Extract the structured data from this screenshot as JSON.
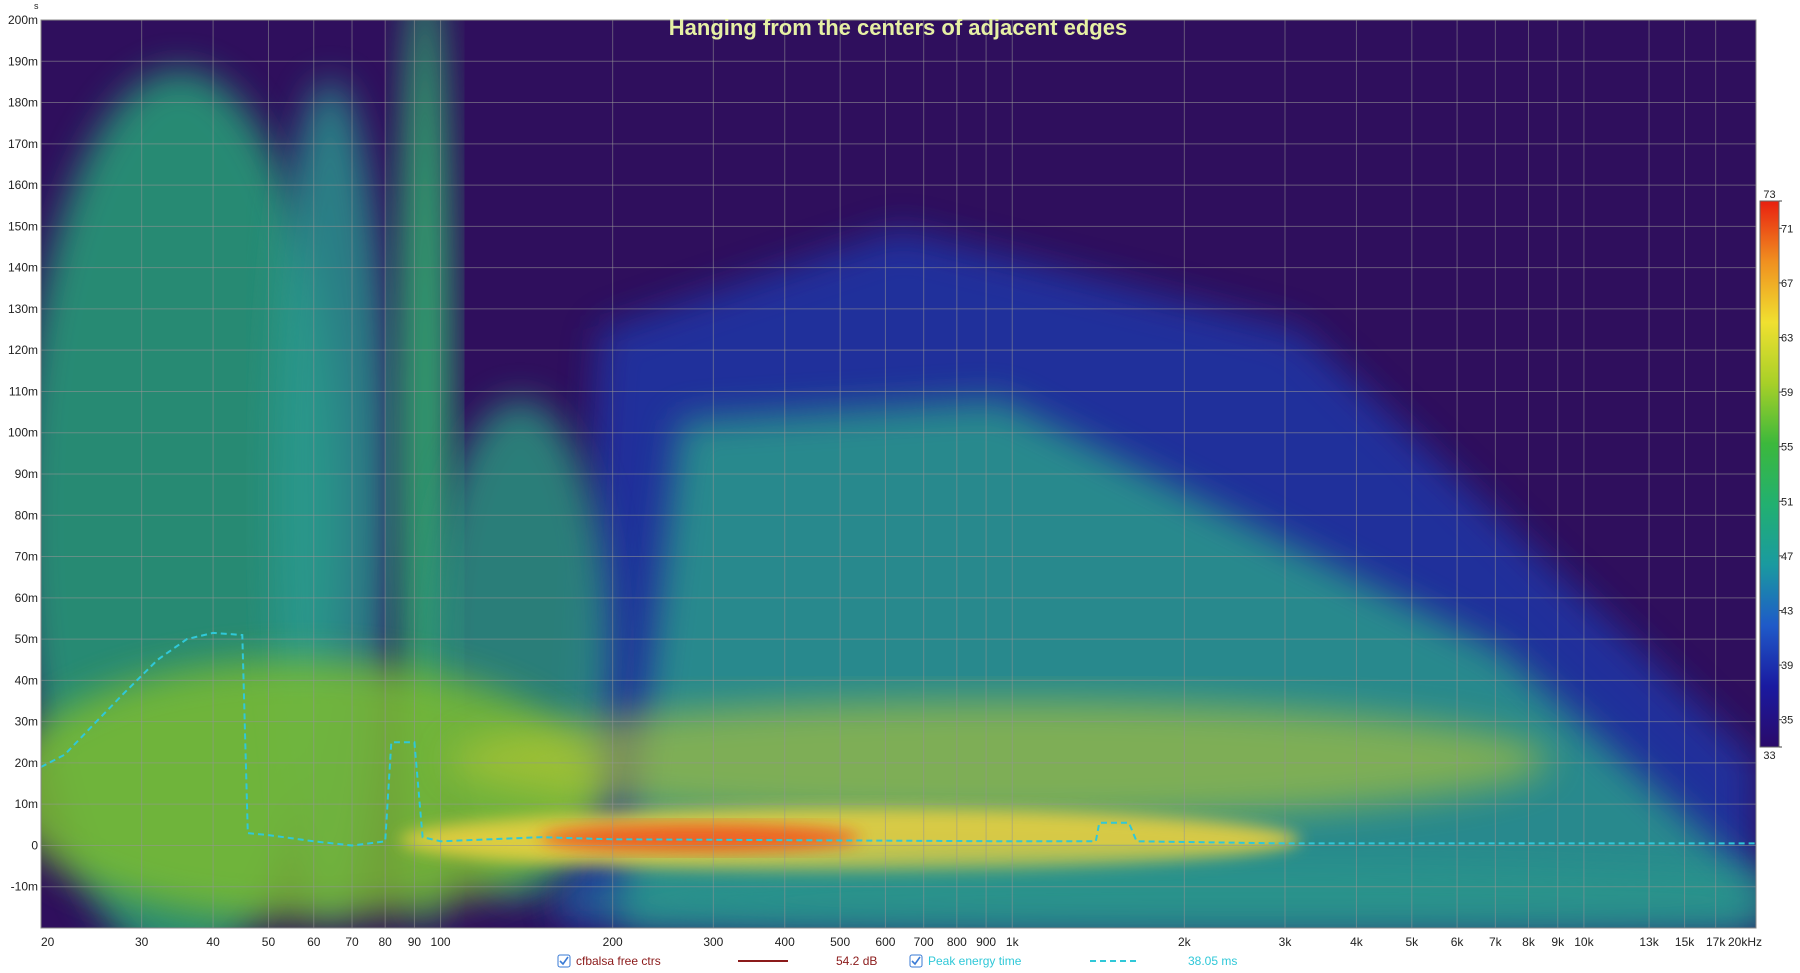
{
  "chart_data": {
    "type": "spectrogram",
    "title": "Hanging from the centers of adjacent edges",
    "y_unit": "s",
    "log_x": true,
    "grid": true,
    "background": "#2f0f5d",
    "xlim": [
      20,
      20000
    ],
    "ylim": [
      -20,
      200
    ],
    "xticks": [
      20,
      30,
      40,
      50,
      60,
      70,
      80,
      90,
      100,
      200,
      300,
      400,
      500,
      600,
      700,
      800,
      900,
      {
        "value": 1000,
        "label": "1k"
      },
      {
        "value": 2000,
        "label": "2k"
      },
      {
        "value": 3000,
        "label": "3k"
      },
      {
        "value": 4000,
        "label": "4k"
      },
      {
        "value": 5000,
        "label": "5k"
      },
      {
        "value": 6000,
        "label": "6k"
      },
      {
        "value": 7000,
        "label": "7k"
      },
      {
        "value": 8000,
        "label": "8k"
      },
      {
        "value": 9000,
        "label": "9k"
      },
      {
        "value": 10000,
        "label": "10k"
      },
      {
        "value": 13000,
        "label": "13k"
      },
      {
        "value": 15000,
        "label": "15k"
      },
      {
        "value": 17000,
        "label": "17k"
      },
      {
        "value": 20000,
        "label": "20kHz"
      }
    ],
    "yticks": [
      {
        "value": -10,
        "label": "-10m"
      },
      0,
      {
        "value": 10,
        "label": "10m"
      },
      {
        "value": 20,
        "label": "20m"
      },
      {
        "value": 30,
        "label": "30m"
      },
      {
        "value": 40,
        "label": "40m"
      },
      {
        "value": 50,
        "label": "50m"
      },
      {
        "value": 60,
        "label": "60m"
      },
      {
        "value": 70,
        "label": "70m"
      },
      {
        "value": 80,
        "label": "80m"
      },
      {
        "value": 90,
        "label": "90m"
      },
      {
        "value": 100,
        "label": "100m"
      },
      {
        "value": 110,
        "label": "110m"
      },
      {
        "value": 120,
        "label": "120m"
      },
      {
        "value": 130,
        "label": "130m"
      },
      {
        "value": 140,
        "label": "140m"
      },
      {
        "value": 150,
        "label": "150m"
      },
      {
        "value": 160,
        "label": "160m"
      },
      {
        "value": 170,
        "label": "170m"
      },
      {
        "value": 180,
        "label": "180m"
      },
      {
        "value": 190,
        "label": "190m"
      },
      {
        "value": 200,
        "label": "200m"
      }
    ],
    "colorbar": {
      "lim": [
        33,
        73
      ],
      "ticks": [
        33,
        35,
        39,
        43,
        47,
        51,
        55,
        59,
        63,
        67,
        71,
        73
      ],
      "colors": [
        "#2a0a6a",
        "#1a1aa0",
        "#1f5ac8",
        "#1a9aa0",
        "#22b070",
        "#3cb83c",
        "#a8d028",
        "#f0e030",
        "#f09020",
        "#e82010"
      ]
    },
    "series": [
      {
        "name": "cfbalsa free  ctrs",
        "color": "#8b1a1a",
        "summary": "54.2 dB"
      },
      {
        "name": "Peak energy time",
        "color": "#30c8d8",
        "dashed": true,
        "summary": "38.05 ms",
        "x": [
          20,
          22,
          25,
          28,
          32,
          36,
          40,
          45,
          46,
          50,
          60,
          70,
          80,
          82,
          90,
          93,
          100,
          150,
          200,
          1000,
          1400,
          1420,
          1600,
          1650,
          3000,
          20000
        ],
        "values": [
          19,
          22,
          30,
          37,
          45,
          50,
          51.5,
          51,
          3,
          2.5,
          1,
          0,
          1,
          25,
          25,
          2,
          1,
          2,
          1.5,
          1,
          1,
          5.5,
          5.5,
          1,
          0.5,
          0.5
        ]
      }
    ]
  }
}
